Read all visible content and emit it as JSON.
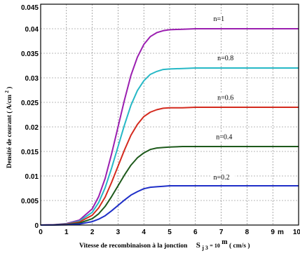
{
  "chart_data": {
    "type": "line",
    "xlabel": {
      "prefix": "Vitesse de recombinaison à la jonction",
      "var": "S",
      "sub": "j 3",
      "eq": " = 10",
      "sup": "m",
      "unit": " ( cm/s )",
      "axis_var": "m"
    },
    "ylabel": {
      "prefix": "Densité de courant ( A/cm",
      "sup": "2",
      "suffix": " )"
    },
    "xlim": [
      0,
      10
    ],
    "ylim": [
      0,
      0.045
    ],
    "xticks": [
      "0",
      "1",
      "2",
      "3",
      "4",
      "5",
      "6",
      "7",
      "8",
      "9",
      "10"
    ],
    "yticks": [
      "0",
      "0.005",
      "0.01",
      "0.015",
      "0.02",
      "0.025",
      "0.03",
      "0.035",
      "0.04",
      "0.045"
    ],
    "grid": true,
    "x": [
      0,
      0.5,
      1,
      1.5,
      2,
      2.25,
      2.5,
      2.75,
      3,
      3.25,
      3.5,
      3.75,
      4,
      4.25,
      4.5,
      4.75,
      5,
      5.5,
      6,
      7,
      8,
      9,
      10
    ],
    "series": [
      {
        "name": "n=1",
        "color": "#9b1fb0",
        "values": [
          0,
          5e-05,
          0.0003,
          0.001,
          0.0033,
          0.0058,
          0.0095,
          0.0145,
          0.02,
          0.0255,
          0.0305,
          0.0342,
          0.0368,
          0.0384,
          0.0392,
          0.0396,
          0.0398,
          0.0399,
          0.04,
          0.04,
          0.04,
          0.04,
          0.04
        ]
      },
      {
        "name": "n=0.8",
        "color": "#26b8c6",
        "values": [
          0,
          4e-05,
          0.00024,
          0.0008,
          0.0026,
          0.0046,
          0.0076,
          0.0116,
          0.016,
          0.0204,
          0.0244,
          0.0274,
          0.0294,
          0.0307,
          0.0313,
          0.0317,
          0.0318,
          0.0319,
          0.032,
          0.032,
          0.032,
          0.032,
          0.032
        ]
      },
      {
        "name": "n=0.6",
        "color": "#d42a1e",
        "values": [
          0,
          3e-05,
          0.00018,
          0.0006,
          0.002,
          0.0035,
          0.0057,
          0.0087,
          0.012,
          0.0153,
          0.0183,
          0.0205,
          0.0221,
          0.023,
          0.0235,
          0.0238,
          0.0239,
          0.0239,
          0.024,
          0.024,
          0.024,
          0.024,
          0.024
        ]
      },
      {
        "name": "n=0.4",
        "color": "#1e5a1c",
        "values": [
          0,
          2e-05,
          0.00012,
          0.0004,
          0.0013,
          0.0023,
          0.0038,
          0.0058,
          0.008,
          0.0102,
          0.0122,
          0.0137,
          0.0147,
          0.0154,
          0.0157,
          0.0158,
          0.0159,
          0.016,
          0.016,
          0.016,
          0.016,
          0.016,
          0.016
        ]
      },
      {
        "name": "n=0.2",
        "color": "#1f2fc8",
        "values": [
          0,
          1e-05,
          6e-05,
          0.0002,
          0.0007,
          0.0012,
          0.0019,
          0.0029,
          0.004,
          0.0051,
          0.0061,
          0.0068,
          0.0074,
          0.0077,
          0.0078,
          0.0079,
          0.008,
          0.008,
          0.008,
          0.008,
          0.008,
          0.008,
          0.008
        ]
      }
    ],
    "annotations": [
      {
        "text": "n=1",
        "x": 6.7,
        "y": 0.0416
      },
      {
        "text": "n=0.8",
        "x": 6.85,
        "y": 0.0336
      },
      {
        "text": "n=0.6",
        "x": 6.85,
        "y": 0.0255
      },
      {
        "text": "n=0.4",
        "x": 6.8,
        "y": 0.0175
      },
      {
        "text": "n=0.2",
        "x": 6.7,
        "y": 0.0093
      }
    ]
  }
}
